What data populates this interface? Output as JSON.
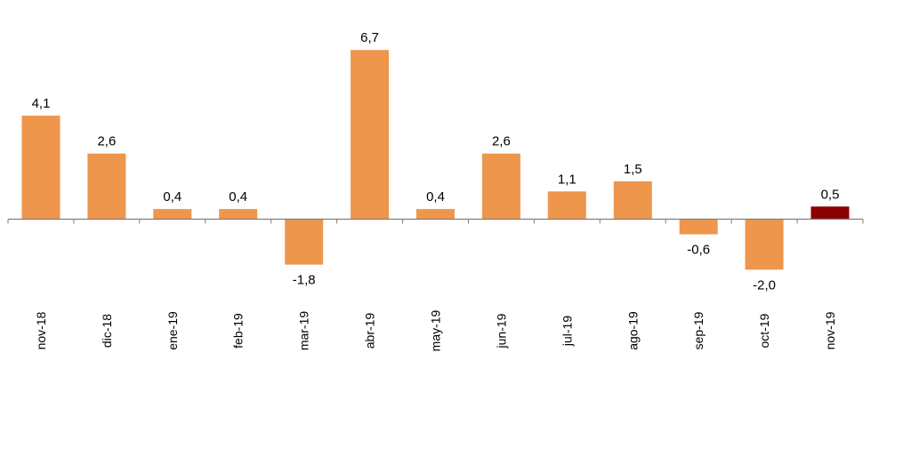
{
  "chart_data": {
    "type": "bar",
    "title": "",
    "xlabel": "",
    "ylabel": "",
    "categories": [
      "nov-18",
      "dic-18",
      "ene-19",
      "feb-19",
      "mar-19",
      "abr-19",
      "may-19",
      "jun-19",
      "jul-19",
      "ago-19",
      "sep-19",
      "oct-19",
      "nov-19"
    ],
    "values": [
      4.1,
      2.6,
      0.4,
      0.4,
      -1.8,
      6.7,
      0.4,
      2.6,
      1.1,
      1.5,
      -0.6,
      -2.0,
      0.5
    ],
    "value_labels": [
      "4,1",
      "2,6",
      "0,4",
      "0,4",
      "-1,8",
      "6,7",
      "0,4",
      "2,6",
      "1,1",
      "1,5",
      "-0,6",
      "-2,0",
      "0,5"
    ],
    "ylim": [
      -4.8,
      7.6
    ],
    "grid": false,
    "colors": {
      "bar": "#EE964B",
      "highlight": "#8B0000",
      "axis": "#808080"
    },
    "highlight_index": 12
  }
}
